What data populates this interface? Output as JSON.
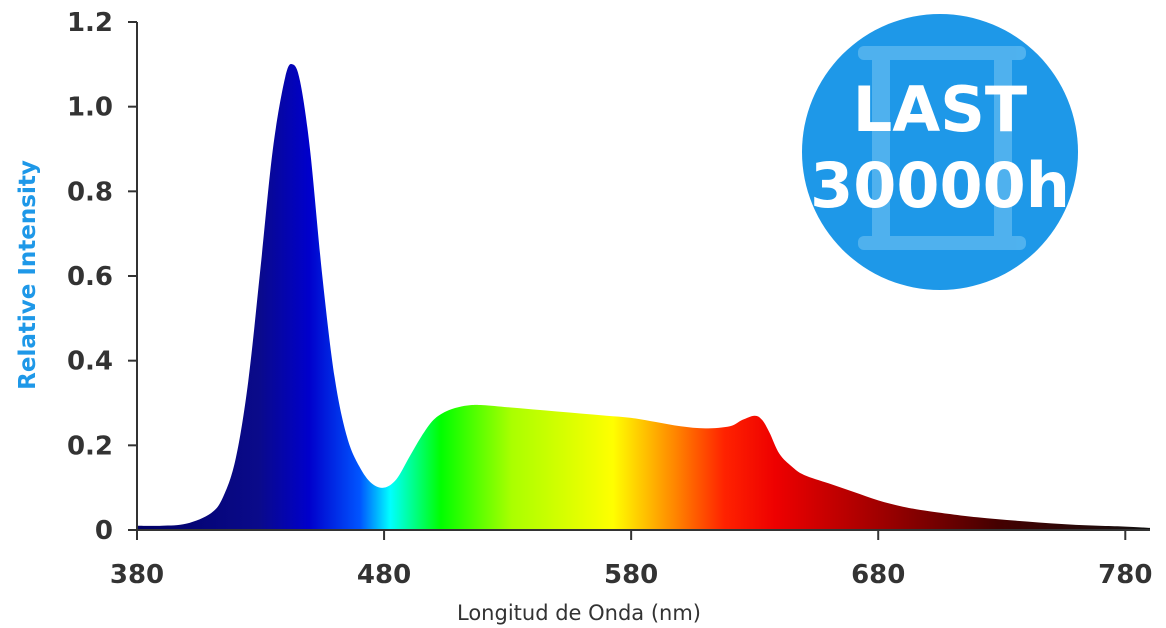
{
  "chart_data": {
    "type": "area",
    "xlabel": "Longitud de Onda (nm)",
    "ylabel": "Relative Intensity",
    "xlim": [
      380,
      790
    ],
    "ylim": [
      0,
      1.2
    ],
    "x_ticks": [
      "380",
      "480",
      "580",
      "680",
      "780"
    ],
    "y_ticks": [
      "0",
      "0.2",
      "0.4",
      "0.6",
      "0.8",
      "1.0",
      "1.2"
    ],
    "grid": false,
    "series": [
      {
        "x": [
          380,
          390,
          400,
          410,
          415,
          420,
          425,
          430,
          435,
          440,
          443,
          446,
          450,
          455,
          460,
          465,
          470,
          475,
          480,
          485,
          490,
          495,
          500,
          505,
          510,
          515,
          520,
          530,
          540,
          550,
          560,
          570,
          580,
          590,
          600,
          610,
          620,
          625,
          630,
          633,
          636,
          640,
          645,
          650,
          660,
          670,
          680,
          690,
          700,
          720,
          740,
          760,
          780,
          790
        ],
        "y": [
          0.01,
          0.01,
          0.015,
          0.04,
          0.08,
          0.17,
          0.35,
          0.62,
          0.9,
          1.07,
          1.1,
          1.06,
          0.9,
          0.6,
          0.36,
          0.22,
          0.15,
          0.11,
          0.1,
          0.12,
          0.17,
          0.22,
          0.26,
          0.28,
          0.29,
          0.295,
          0.295,
          0.29,
          0.285,
          0.28,
          0.275,
          0.27,
          0.265,
          0.255,
          0.245,
          0.24,
          0.245,
          0.26,
          0.27,
          0.26,
          0.23,
          0.18,
          0.15,
          0.13,
          0.11,
          0.09,
          0.07,
          0.055,
          0.045,
          0.03,
          0.02,
          0.012,
          0.008,
          0.005
        ]
      }
    ]
  },
  "badge": {
    "line1": "LAST",
    "line2": "30000h",
    "color": "#1e98e8"
  },
  "colors": {
    "axis": "#333333",
    "tick_text": "#333333",
    "ylabel": "#1e98e8"
  }
}
